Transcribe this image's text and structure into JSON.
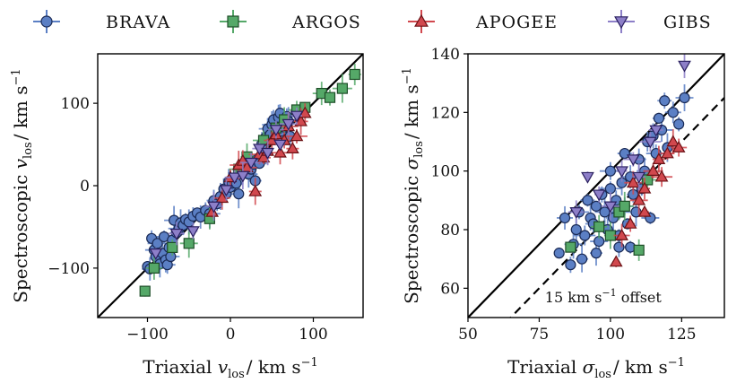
{
  "chart_data": [
    {
      "type": "scatter",
      "panel": "left",
      "xlabel": "Triaxial v_los / km s^-1",
      "xlabel_parts": {
        "pre": "Triaxial ",
        "var": "v",
        "sub": "los",
        "post": "/ km s",
        "sup": "−1"
      },
      "ylabel": "Spectroscopic v_los / km s^-1",
      "ylabel_parts": {
        "pre": "Spectroscopic ",
        "var": "v",
        "sub": "los",
        "post": "/ km s",
        "sup": "−1"
      },
      "xlim": [
        -160,
        160
      ],
      "ylim": [
        -160,
        160
      ],
      "xticks": [
        -100,
        0,
        100
      ],
      "yticks": [
        -100,
        0,
        100
      ],
      "xtick_labels": [
        "−100",
        "0",
        "100"
      ],
      "ytick_labels": [
        "−100",
        "0",
        "100"
      ],
      "reference_lines": [
        {
          "name": "one-to-one",
          "slope": 1,
          "offset": 0,
          "style": "solid"
        }
      ],
      "series": [
        {
          "name": "BRAVA",
          "marker": "circle",
          "color": "#5b7fc4",
          "edge": "#1a2a55",
          "points": [
            [
              -100,
              -98
            ],
            [
              -97,
              -101
            ],
            [
              -95,
              -64
            ],
            [
              -92,
              -78
            ],
            [
              -90,
              -86
            ],
            [
              -88,
              -70
            ],
            [
              -85,
              -95
            ],
            [
              -82,
              -82
            ],
            [
              -80,
              -62
            ],
            [
              -78,
              -90
            ],
            [
              -76,
              -96
            ],
            [
              -74,
              -75
            ],
            [
              -72,
              -86
            ],
            [
              -70,
              -66
            ],
            [
              -68,
              -42
            ],
            [
              -65,
              -57
            ],
            [
              -62,
              -52
            ],
            [
              -60,
              -45
            ],
            [
              -57,
              -48
            ],
            [
              -54,
              -41
            ],
            [
              -50,
              -44
            ],
            [
              -45,
              -37
            ],
            [
              -40,
              -33
            ],
            [
              -36,
              -38
            ],
            [
              -30,
              -30
            ],
            [
              -25,
              -34
            ],
            [
              -20,
              -18
            ],
            [
              -16,
              -22
            ],
            [
              -12,
              -13
            ],
            [
              -8,
              -4
            ],
            [
              -5,
              -10
            ],
            [
              -2,
              5
            ],
            [
              0,
              -2
            ],
            [
              2,
              3
            ],
            [
              4,
              8
            ],
            [
              7,
              3
            ],
            [
              10,
              -10
            ],
            [
              14,
              14
            ],
            [
              18,
              22
            ],
            [
              22,
              14
            ],
            [
              25,
              20
            ],
            [
              28,
              26
            ],
            [
              30,
              6
            ],
            [
              33,
              33
            ],
            [
              35,
              27
            ],
            [
              38,
              51
            ],
            [
              40,
              45
            ],
            [
              42,
              58
            ],
            [
              45,
              69
            ],
            [
              48,
              62
            ],
            [
              50,
              74
            ],
            [
              52,
              80
            ],
            [
              55,
              58
            ],
            [
              58,
              83
            ],
            [
              60,
              88
            ],
            [
              62,
              66
            ],
            [
              65,
              71
            ],
            [
              68,
              84
            ],
            [
              70,
              78
            ],
            [
              72,
              60
            ]
          ]
        },
        {
          "name": "ARGOS",
          "marker": "square",
          "color": "#55a868",
          "edge": "#1e4d28",
          "points": [
            [
              -103,
              -128
            ],
            [
              -92,
              -100
            ],
            [
              -70,
              -75
            ],
            [
              -50,
              -70
            ],
            [
              -25,
              -40
            ],
            [
              10,
              20
            ],
            [
              20,
              35
            ],
            [
              40,
              55
            ],
            [
              55,
              70
            ],
            [
              65,
              80
            ],
            [
              80,
              92
            ],
            [
              90,
              95
            ],
            [
              110,
              112
            ],
            [
              120,
              107
            ],
            [
              135,
              118
            ],
            [
              150,
              135
            ]
          ]
        },
        {
          "name": "APOGEE",
          "marker": "triangle-up",
          "color": "#d1484e",
          "edge": "#6b1216",
          "points": [
            [
              -22,
              -32
            ],
            [
              -10,
              -15
            ],
            [
              0,
              10
            ],
            [
              10,
              25
            ],
            [
              15,
              30
            ],
            [
              20,
              22
            ],
            [
              30,
              -7
            ],
            [
              35,
              38
            ],
            [
              40,
              34
            ],
            [
              45,
              42
            ],
            [
              50,
              55
            ],
            [
              55,
              62
            ],
            [
              60,
              40
            ],
            [
              65,
              55
            ],
            [
              70,
              72
            ],
            [
              75,
              45
            ],
            [
              80,
              60
            ],
            [
              85,
              78
            ],
            [
              90,
              88
            ]
          ]
        },
        {
          "name": "GIBS",
          "marker": "triangle-down",
          "color": "#8d7fc8",
          "edge": "#2a2060",
          "points": [
            [
              -90,
              -82
            ],
            [
              -65,
              -58
            ],
            [
              -45,
              -55
            ],
            [
              -20,
              -25
            ],
            [
              -5,
              -5
            ],
            [
              5,
              10
            ],
            [
              15,
              12
            ],
            [
              25,
              28
            ],
            [
              35,
              45
            ],
            [
              45,
              40
            ],
            [
              55,
              68
            ],
            [
              60,
              50
            ],
            [
              70,
              75
            ],
            [
              80,
              85
            ]
          ]
        }
      ]
    },
    {
      "type": "scatter",
      "panel": "right",
      "xlabel": "Triaxial sigma_los / km s^-1",
      "xlabel_parts": {
        "pre": "Triaxial ",
        "var": "σ",
        "sub": "los",
        "post": "/ km s",
        "sup": "−1"
      },
      "ylabel": "Spectroscopic sigma_los / km s^-1",
      "ylabel_parts": {
        "pre": "Spectroscopic ",
        "var": "σ",
        "sub": "los",
        "post": "/ km s",
        "sup": "−1"
      },
      "xlim": [
        50,
        140
      ],
      "ylim": [
        50,
        140
      ],
      "xticks": [
        50,
        75,
        100,
        125
      ],
      "yticks": [
        60,
        80,
        100,
        120,
        140
      ],
      "xtick_labels": [
        "50",
        "75",
        "100",
        "125"
      ],
      "ytick_labels": [
        "60",
        "80",
        "100",
        "120",
        "140"
      ],
      "reference_lines": [
        {
          "name": "one-to-one",
          "slope": 1,
          "offset": 0,
          "style": "solid"
        },
        {
          "name": "offset-15",
          "slope": 1,
          "offset": -15,
          "style": "dashed"
        }
      ],
      "annotation": {
        "prefix": "15 km s",
        "sup": "−1",
        "suffix": " offset"
      },
      "series": [
        {
          "name": "BRAVA",
          "marker": "circle",
          "color": "#5b7fc4",
          "edge": "#1a2a55",
          "points": [
            [
              82,
              72
            ],
            [
              84,
              84
            ],
            [
              86,
              68
            ],
            [
              87,
              75
            ],
            [
              88,
              80
            ],
            [
              89,
              86
            ],
            [
              90,
              70
            ],
            [
              91,
              78
            ],
            [
              92,
              90
            ],
            [
              93,
              84
            ],
            [
              94,
              82
            ],
            [
              95,
              88
            ],
            [
              96,
              76
            ],
            [
              97,
              92
            ],
            [
              98,
              86
            ],
            [
              99,
              80
            ],
            [
              100,
              94
            ],
            [
              101,
              84
            ],
            [
              102,
              90
            ],
            [
              103,
              78
            ],
            [
              104,
              96
            ],
            [
              105,
              88
            ],
            [
              106,
              82
            ],
            [
              107,
              98
            ],
            [
              108,
              92
            ],
            [
              109,
              86
            ],
            [
              110,
              104
            ],
            [
              111,
              94
            ],
            [
              112,
              100
            ],
            [
              113,
              110
            ],
            [
              114,
              84
            ],
            [
              115,
              112
            ],
            [
              116,
              106
            ],
            [
              117,
              118
            ],
            [
              118,
              114
            ],
            [
              119,
              124
            ],
            [
              120,
              108
            ],
            [
              122,
              120
            ],
            [
              124,
              116
            ],
            [
              126,
              125
            ],
            [
              103,
              74
            ],
            [
              107,
              74
            ],
            [
              95,
              72
            ],
            [
              100,
              100
            ],
            [
              105,
              106
            ]
          ]
        },
        {
          "name": "ARGOS",
          "marker": "square",
          "color": "#55a868",
          "edge": "#1e4d28",
          "points": [
            [
              86,
              74
            ],
            [
              96,
              81
            ],
            [
              103,
              86
            ],
            [
              105,
              88
            ],
            [
              110,
              73
            ],
            [
              113,
              97
            ],
            [
              100,
              78
            ]
          ]
        },
        {
          "name": "APOGEE",
          "marker": "triangle-up",
          "color": "#d1484e",
          "edge": "#6b1216",
          "points": [
            [
              102,
              69
            ],
            [
              104,
              78
            ],
            [
              107,
              82
            ],
            [
              110,
              90
            ],
            [
              112,
              94
            ],
            [
              115,
              100
            ],
            [
              117,
              104
            ],
            [
              118,
              98
            ],
            [
              120,
              106
            ],
            [
              122,
              110
            ],
            [
              124,
              108
            ],
            [
              112,
              86
            ],
            [
              108,
              96
            ]
          ]
        },
        {
          "name": "GIBS",
          "marker": "triangle-down",
          "color": "#8d7fc8",
          "edge": "#2a2060",
          "points": [
            [
              92,
              98
            ],
            [
              88,
              86
            ],
            [
              96,
              92
            ],
            [
              100,
              88
            ],
            [
              104,
              100
            ],
            [
              108,
              104
            ],
            [
              110,
              98
            ],
            [
              114,
              110
            ],
            [
              116,
              114
            ],
            [
              126,
              136
            ]
          ]
        }
      ]
    }
  ],
  "legend": [
    {
      "name": "BRAVA",
      "marker": "circle",
      "color": "#5b7fc4",
      "edge": "#1a2a55"
    },
    {
      "name": "ARGOS",
      "marker": "square",
      "color": "#55a868",
      "edge": "#1e4d28"
    },
    {
      "name": "APOGEE",
      "marker": "triangle-up",
      "color": "#d1484e",
      "edge": "#6b1216"
    },
    {
      "name": "GIBS",
      "marker": "triangle-down",
      "color": "#8d7fc8",
      "edge": "#2a2060"
    }
  ]
}
